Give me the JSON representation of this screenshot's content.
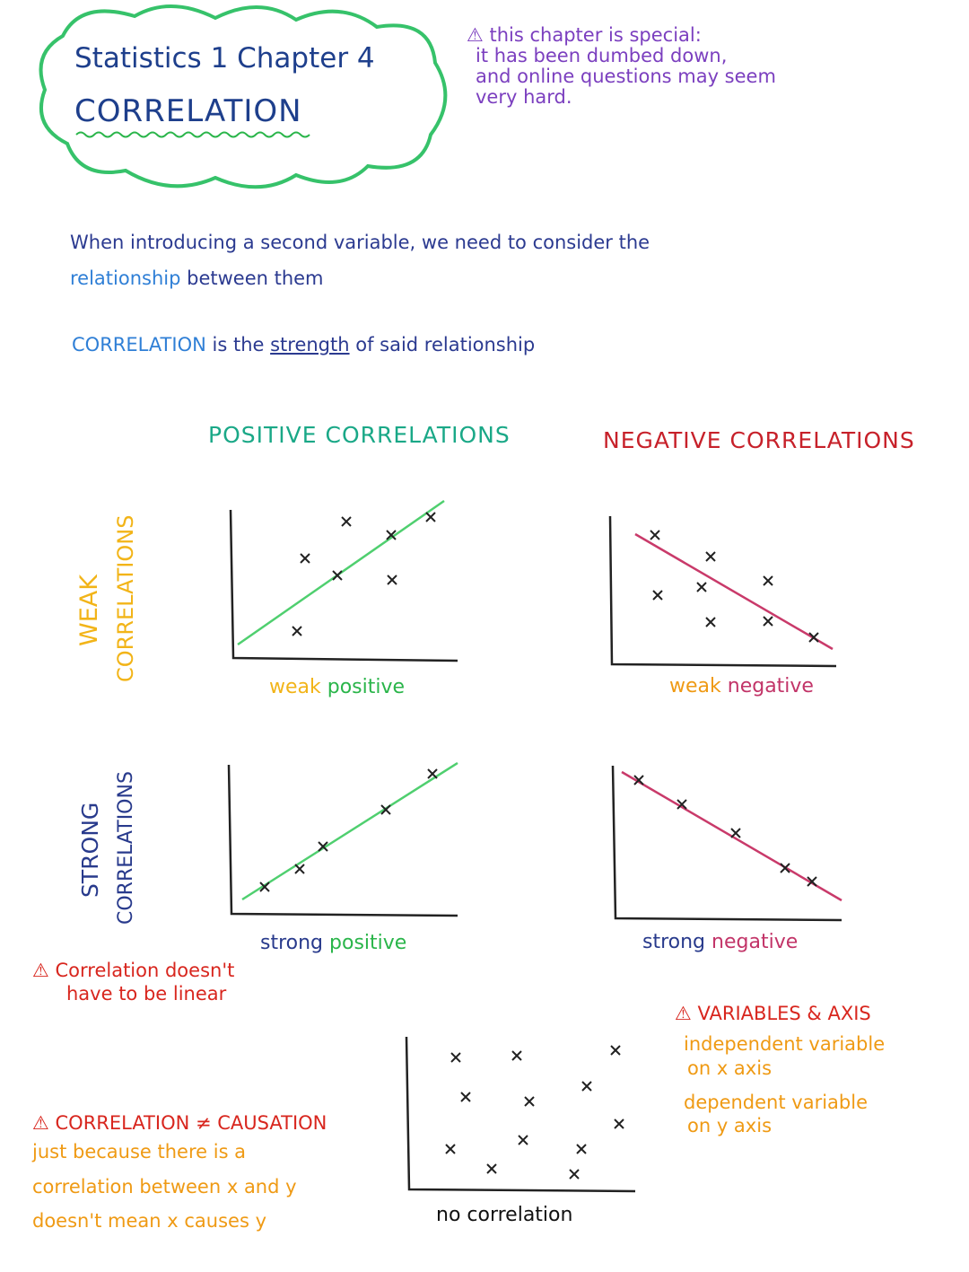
{
  "header": {
    "title_line1": "Statistics 1   Chapter 4",
    "title_line2": "CORRELATION",
    "warning_lines": [
      "⚠ this chapter is special:",
      "it has been dumbed down,",
      "and online questions may seem",
      "very hard."
    ]
  },
  "intro": {
    "line1": "When introducing a second variable, we need to consider the",
    "line2_highlight": "relationship",
    "line2_rest": " between them",
    "definition_term": "CORRELATION",
    "definition_mid": " is the ",
    "definition_key": "strength",
    "definition_end": " of said relationship"
  },
  "headings": {
    "positive": "POSITIVE CORRELATIONS",
    "negative": "NEGATIVE CORRELATIONS",
    "weak_l1": "WEAK",
    "weak_l2": "CORRELATIONS",
    "strong_l1": "STRONG",
    "strong_l2": "CORRELATIONS"
  },
  "graph_labels": {
    "weak_positive_a": "weak",
    "weak_positive_b": "positive",
    "weak_negative_a": "weak",
    "weak_negative_b": "negative",
    "strong_positive_a": "strong",
    "strong_positive_b": "positive",
    "strong_negative_a": "strong",
    "strong_negative_b": "negative",
    "no_correlation": "no correlation"
  },
  "notes": {
    "linear_l1": "⚠ Correlation doesn't",
    "linear_l2": "have to be linear",
    "causation_title": "⚠ CORRELATION ≠ CAUSATION",
    "causation_lines": [
      "just because there is a",
      "correlation between x and y",
      "doesn't mean x causes y"
    ],
    "axis_title": "⚠ VARIABLES & AXIS",
    "axis_lines": [
      "independent variable",
      "on x axis",
      "dependent variable",
      "on y axis"
    ]
  },
  "colors": {
    "cloud": "#36c26a",
    "pos_line": "#4fcf6f",
    "neg_line": "#c93a6a",
    "axes": "#222222"
  }
}
